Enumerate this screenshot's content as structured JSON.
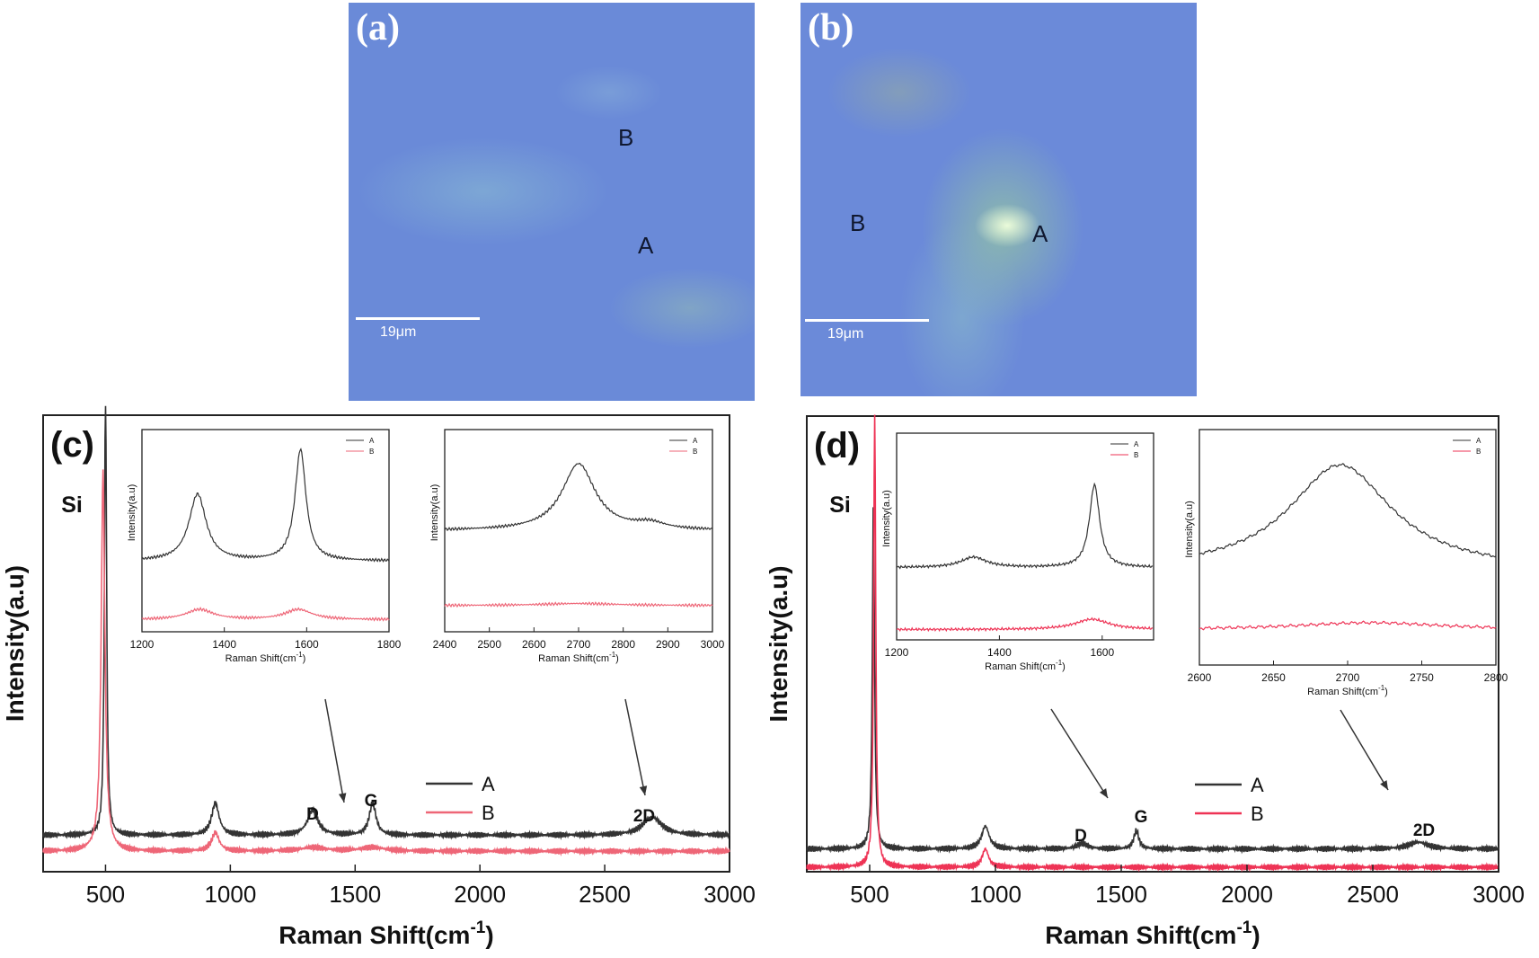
{
  "images": [
    {
      "panel": "(a)",
      "point_a": "A",
      "point_b": "B",
      "scale_bar": "19μm"
    },
    {
      "panel": "(b)",
      "point_a": "A",
      "point_b": "B",
      "scale_bar": "19μm"
    }
  ],
  "chart_data": [
    {
      "type": "line",
      "panel": "(c)",
      "xlabel": "Raman Shift(cm",
      "xlabel_sup": "-1",
      "xlabel_tail": ")",
      "ylabel": "Intensity(a.u)",
      "xlim": [
        250,
        3000
      ],
      "xticks": [
        500,
        1000,
        1500,
        2000,
        2500,
        3000
      ],
      "legend": {
        "placement": "center-right",
        "entries": [
          "A",
          "B"
        ]
      },
      "annotations": {
        "si": "Si",
        "d": "D",
        "g": "G",
        "twod": "2D"
      },
      "series": [
        {
          "name": "A",
          "color": "#333333",
          "baseline": 0.08,
          "peaks": [
            [
              500,
              1.0,
              5
            ],
            [
              940,
              0.07,
              18
            ],
            [
              1330,
              0.055,
              25
            ],
            [
              1570,
              0.07,
              16
            ],
            [
              2690,
              0.04,
              45
            ]
          ],
          "x": [
            250,
            400,
            500,
            940,
            1330,
            1570,
            2690,
            3000
          ],
          "y": [
            0.08,
            0.08,
            1.0,
            0.15,
            0.135,
            0.15,
            0.12,
            0.08
          ]
        },
        {
          "name": "B",
          "color": "#ee6677",
          "baseline": 0.045,
          "peaks": [
            [
              490,
              0.83,
              9
            ],
            [
              940,
              0.04,
              18
            ],
            [
              1330,
              0.008,
              60
            ],
            [
              1570,
              0.008,
              60
            ]
          ],
          "x": [
            250,
            490,
            940,
            3000
          ],
          "y": [
            0.045,
            0.875,
            0.085,
            0.045
          ]
        }
      ],
      "insets": [
        {
          "xlabel": "Raman Shift(cm",
          "xlabel_sup": "-1",
          "xlabel_tail": ")",
          "ylabel": "Intensity(a.u)",
          "xlim": [
            1200,
            1800
          ],
          "xticks": [
            1200,
            1400,
            1600,
            1800
          ],
          "legend": [
            "A",
            "B"
          ],
          "series": [
            {
              "name": "A",
              "color": "#333333",
              "baseline": 0.35,
              "peaks": [
                [
                  1335,
                  0.33,
                  25
                ],
                [
                  1585,
                  0.55,
                  16
                ]
              ]
            },
            {
              "name": "B",
              "color": "#ee6677",
              "baseline": 0.06,
              "peaks": [
                [
                  1340,
                  0.05,
                  40
                ],
                [
                  1580,
                  0.05,
                  40
                ]
              ]
            }
          ]
        },
        {
          "xlabel": "Raman Shift(cm",
          "xlabel_sup": "-1",
          "xlabel_tail": ")",
          "ylabel": "Intensity(a.u)",
          "xlim": [
            2400,
            3000
          ],
          "xticks": [
            2400,
            2500,
            2600,
            2700,
            2800,
            2900,
            3000
          ],
          "legend": [
            "A",
            "B"
          ],
          "series": [
            {
              "name": "A",
              "color": "#333333",
              "baseline": 0.5,
              "peaks": [
                [
                  2700,
                  0.33,
                  45
                ],
                [
                  2860,
                  0.03,
                  40
                ]
              ]
            },
            {
              "name": "B",
              "color": "#ee6677",
              "baseline": 0.13,
              "peaks": [
                [
                  2700,
                  0.01,
                  100
                ]
              ]
            }
          ]
        }
      ]
    },
    {
      "type": "line",
      "panel": "(d)",
      "xlabel": "Raman Shift(cm",
      "xlabel_sup": "-1",
      "xlabel_tail": ")",
      "ylabel": "Intensity(a.u)",
      "xlim": [
        250,
        3000
      ],
      "xticks": [
        500,
        1000,
        1500,
        2000,
        2500,
        3000
      ],
      "legend": {
        "placement": "center-right",
        "entries": [
          "A",
          "B"
        ]
      },
      "annotations": {
        "si": "Si",
        "d": "D",
        "g": "G",
        "twod": "2D"
      },
      "series": [
        {
          "name": "A",
          "color": "#333333",
          "baseline": 0.05,
          "peaks": [
            [
              515,
              0.78,
              5
            ],
            [
              960,
              0.05,
              18
            ],
            [
              1345,
              0.012,
              25
            ],
            [
              1560,
              0.04,
              12
            ],
            [
              2680,
              0.015,
              45
            ]
          ],
          "x": [
            250,
            515,
            960,
            1345,
            1560,
            2680,
            3000
          ],
          "y": [
            0.05,
            0.83,
            0.1,
            0.062,
            0.09,
            0.065,
            0.05
          ]
        },
        {
          "name": "B",
          "color": "#ee3355",
          "baseline": 0.01,
          "peaks": [
            [
              520,
              0.99,
              5
            ],
            [
              960,
              0.04,
              15
            ]
          ],
          "x": [
            250,
            520,
            960,
            3000
          ],
          "y": [
            0.01,
            1.0,
            0.05,
            0.01
          ]
        }
      ],
      "insets": [
        {
          "xlabel": "Raman Shift(cm",
          "xlabel_sup": "-1",
          "xlabel_tail": ")",
          "ylabel": "Intensity(a.u)",
          "xlim": [
            1200,
            1700
          ],
          "xticks": [
            1200,
            1400,
            1600
          ],
          "legend": [
            "A",
            "B"
          ],
          "series": [
            {
              "name": "A",
              "color": "#333333",
              "baseline": 0.35,
              "peaks": [
                [
                  1350,
                  0.05,
                  30
                ],
                [
                  1585,
                  0.4,
                  12
                ]
              ]
            },
            {
              "name": "B",
              "color": "#ee3355",
              "baseline": 0.05,
              "peaks": [
                [
                  1580,
                  0.05,
                  40
                ]
              ]
            }
          ]
        },
        {
          "xlabel": "Raman Shift(cm",
          "xlabel_sup": "-1",
          "xlabel_tail": ")",
          "ylabel": "Intensity(a.u)",
          "xlim": [
            2600,
            2800
          ],
          "xticks": [
            2600,
            2650,
            2700,
            2750,
            2800
          ],
          "legend": [
            "A",
            "B"
          ],
          "series": [
            {
              "name": "A",
              "color": "#333333",
              "baseline": 0.4,
              "peaks": [
                [
                  2695,
                  0.45,
                  42
                ]
              ]
            },
            {
              "name": "B",
              "color": "#ee3355",
              "baseline": 0.15,
              "peaks": [
                [
                  2715,
                  0.03,
                  60
                ]
              ]
            }
          ]
        }
      ]
    }
  ]
}
